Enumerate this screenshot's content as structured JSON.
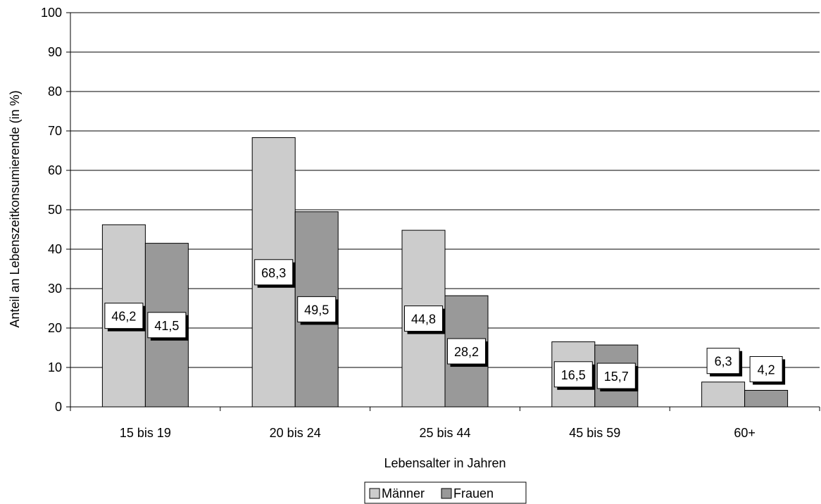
{
  "chart_data": {
    "type": "bar",
    "title": "",
    "xlabel": "Lebensalter in Jahren",
    "ylabel": "Anteil an Lebenszeitkonsumierende (in %)",
    "categories": [
      "15 bis 19",
      "20 bis 24",
      "25 bis 44",
      "45 bis 59",
      "60+"
    ],
    "series": [
      {
        "name": "Männer",
        "values": [
          46.2,
          68.3,
          44.8,
          16.5,
          6.3
        ],
        "labels": [
          "46,2",
          "68,3",
          "44,8",
          "16,5",
          "6,3"
        ],
        "color": "#cccccc"
      },
      {
        "name": "Frauen",
        "values": [
          41.5,
          49.5,
          28.2,
          15.7,
          4.2
        ],
        "labels": [
          "41,5",
          "49,5",
          "28,2",
          "15,7",
          "4,2"
        ],
        "color": "#999999"
      }
    ],
    "ylim": [
      0,
      100
    ],
    "yticks": [
      "0",
      "10",
      "20",
      "30",
      "40",
      "50",
      "60",
      "70",
      "80",
      "90",
      "100"
    ],
    "grid": true,
    "legend_position": "bottom-center"
  }
}
